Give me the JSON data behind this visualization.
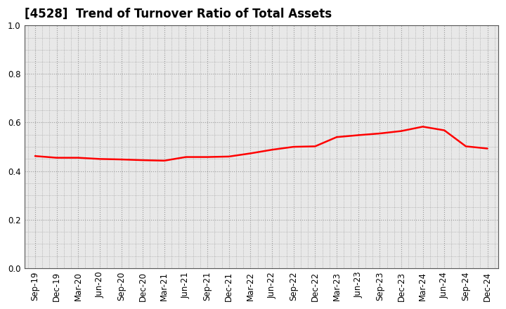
{
  "title": "[4528]  Trend of Turnover Ratio of Total Assets",
  "x_labels": [
    "Sep-19",
    "Dec-19",
    "Mar-20",
    "Jun-20",
    "Sep-20",
    "Dec-20",
    "Mar-21",
    "Jun-21",
    "Sep-21",
    "Dec-21",
    "Mar-22",
    "Jun-22",
    "Sep-22",
    "Dec-22",
    "Mar-23",
    "Jun-23",
    "Sep-23",
    "Dec-23",
    "Mar-24",
    "Jun-24",
    "Sep-24",
    "Dec-24"
  ],
  "y_values": [
    0.462,
    0.455,
    0.455,
    0.45,
    0.448,
    0.445,
    0.443,
    0.458,
    0.458,
    0.46,
    0.473,
    0.488,
    0.5,
    0.502,
    0.54,
    0.548,
    0.555,
    0.565,
    0.583,
    0.568,
    0.502,
    0.493
  ],
  "line_color": "#FF0000",
  "line_width": 1.8,
  "background_color": "#ffffff",
  "plot_bg_color": "#e8e8e8",
  "grid_color": "#999999",
  "ylim": [
    0.0,
    1.0
  ],
  "yticks": [
    0.0,
    0.2,
    0.4,
    0.6,
    0.8,
    1.0
  ],
  "title_fontsize": 12,
  "tick_fontsize": 8.5,
  "title_fontweight": "bold"
}
